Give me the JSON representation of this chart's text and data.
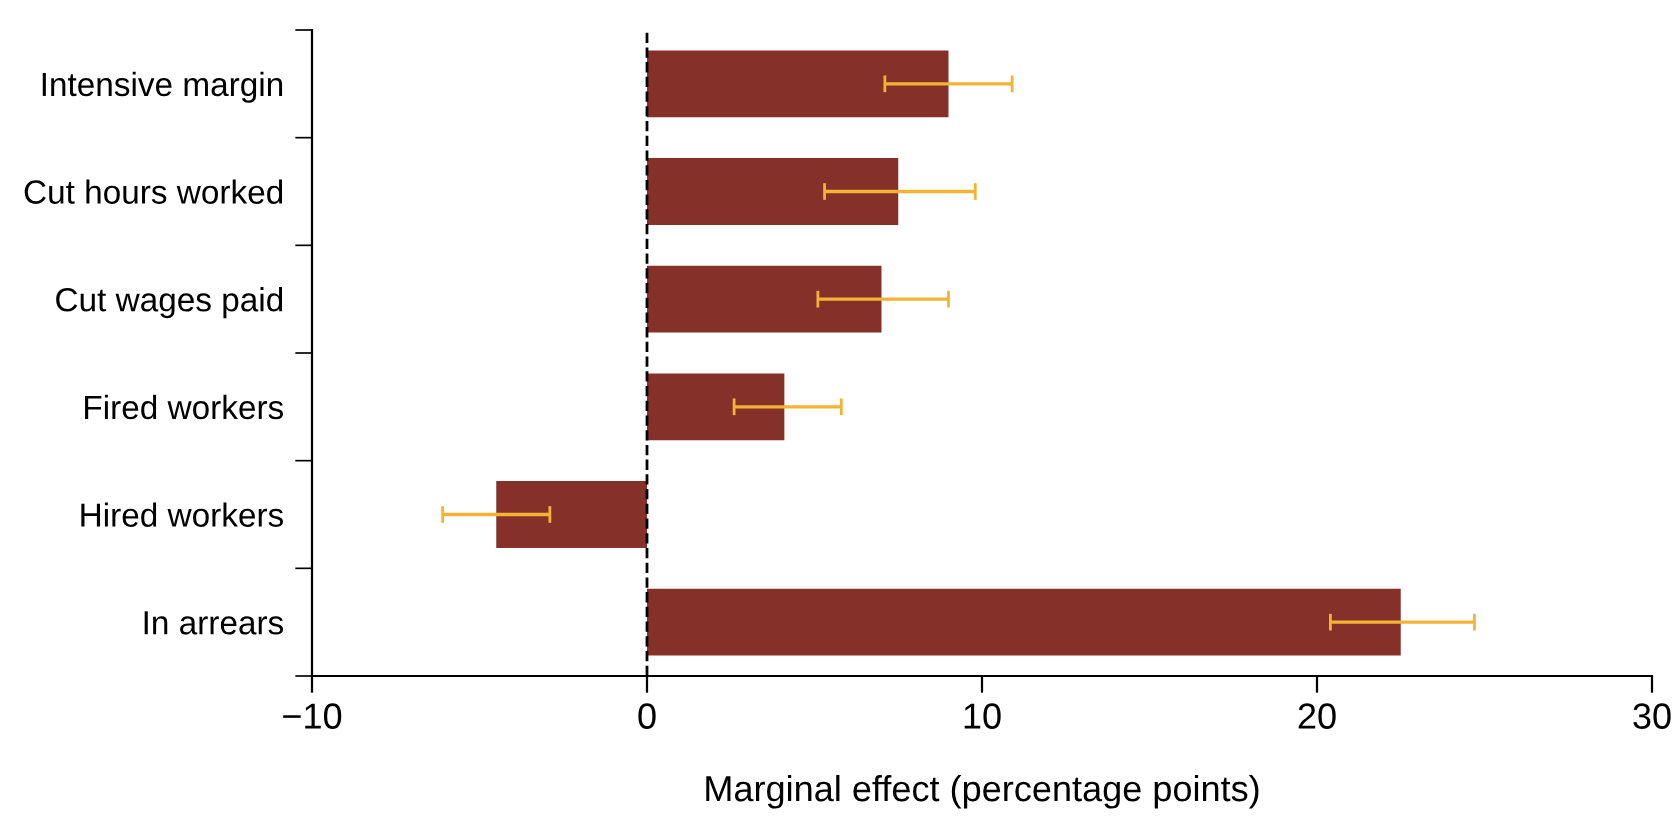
{
  "chart_data": {
    "type": "bar",
    "orientation": "horizontal",
    "xlabel": "Marginal effect (percentage points)",
    "categories": [
      "Intensive margin",
      "Cut hours worked",
      "Cut wages paid",
      "Fired workers",
      "Hired workers",
      "In arrears"
    ],
    "values": [
      9.0,
      7.5,
      7.0,
      4.1,
      -4.5,
      22.5
    ],
    "errors": [
      [
        7.1,
        10.9
      ],
      [
        5.3,
        9.8
      ],
      [
        5.1,
        9.0
      ],
      [
        2.6,
        5.8
      ],
      [
        -6.1,
        -2.9
      ],
      [
        20.4,
        24.7
      ]
    ],
    "color": "#85312a",
    "xlim": [
      -10,
      30
    ],
    "xticks": [
      {
        "value": -10,
        "label": "−10"
      },
      0,
      10,
      20,
      30
    ],
    "ref_lines": [
      {
        "axis": "x",
        "value": 0,
        "color": "#000000",
        "line_style": "dashed"
      }
    ],
    "grid": false,
    "legend": false
  }
}
